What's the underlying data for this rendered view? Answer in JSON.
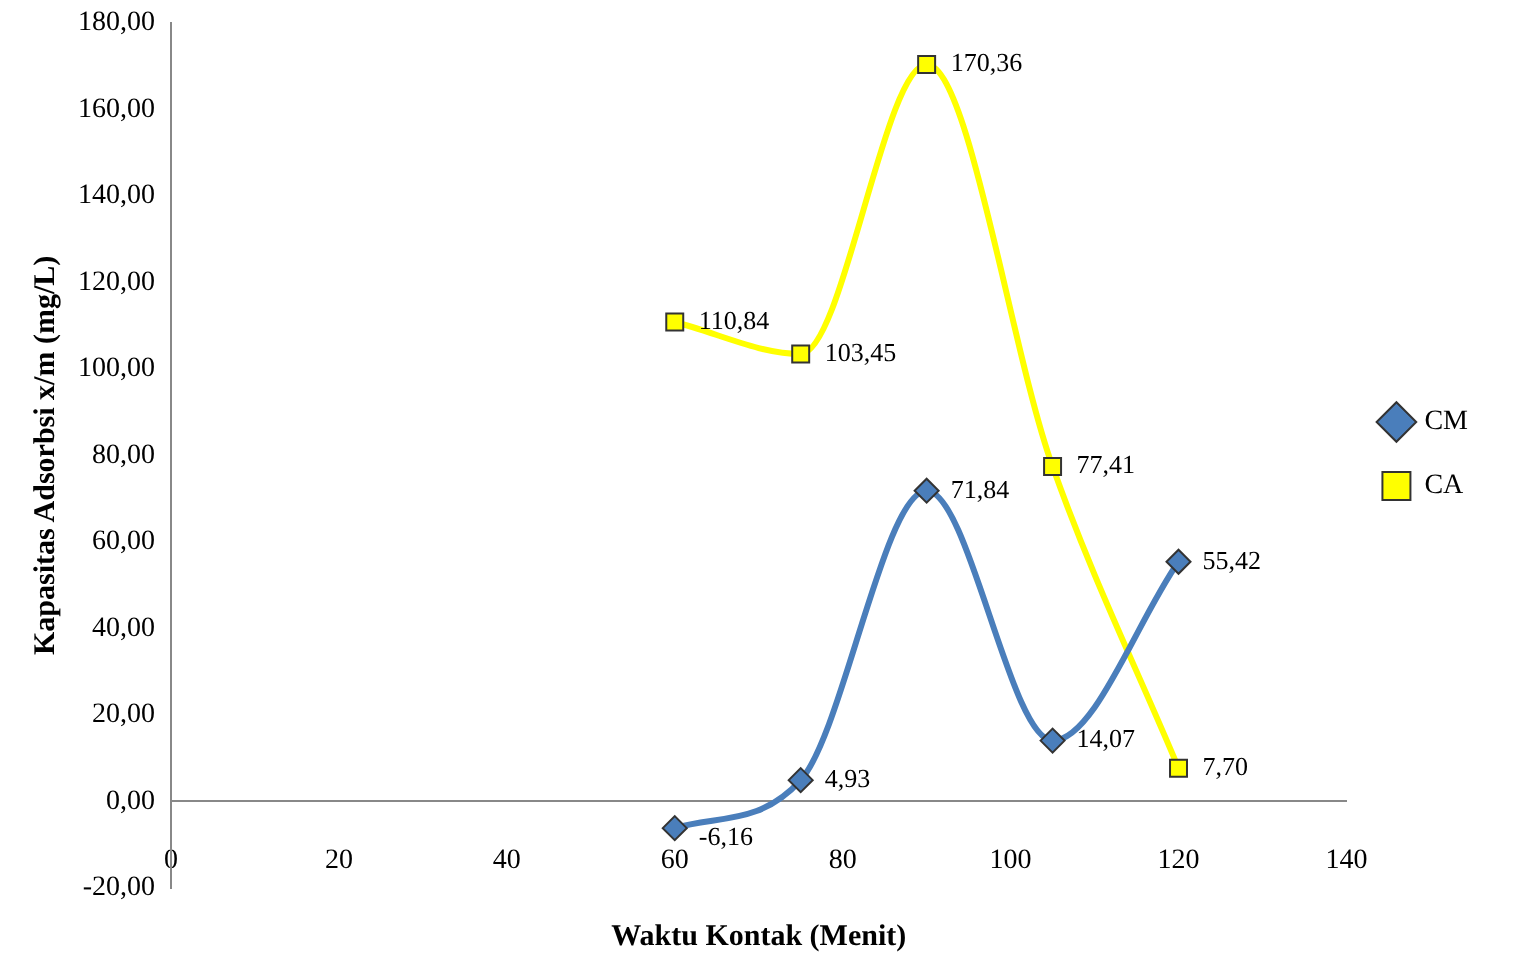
{
  "chart_data": {
    "type": "line",
    "xlabel": "Waktu Kontak (Menit)",
    "ylabel": "Kapasitas Adsorbsi x/m (mg/L)",
    "x": [
      60,
      75,
      90,
      105,
      120
    ],
    "series": [
      {
        "name": "CM",
        "color": "#4a7ebb",
        "marker": "diamond",
        "values": [
          -6.16,
          4.93,
          71.84,
          14.07,
          55.42
        ],
        "value_labels": [
          "-6,16",
          "4,93",
          "71,84",
          "14,07",
          "55,42"
        ]
      },
      {
        "name": "CA",
        "color": "#ffff00",
        "marker": "square",
        "values": [
          110.84,
          103.45,
          170.36,
          77.41,
          7.7
        ],
        "value_labels": [
          "110,84",
          "103,45",
          "170,36",
          "77,41",
          "7,70"
        ]
      }
    ],
    "xlim": [
      0,
      140
    ],
    "xticks": [
      0,
      20,
      40,
      60,
      80,
      100,
      120,
      140
    ],
    "ylim": [
      -20,
      180
    ],
    "yticks": [
      {
        "value": -20,
        "label": "-20,00"
      },
      {
        "value": 0,
        "label": "0,00"
      },
      {
        "value": 20,
        "label": "20,00"
      },
      {
        "value": 40,
        "label": "40,00"
      },
      {
        "value": 60,
        "label": "60,00"
      },
      {
        "value": 80,
        "label": "80,00"
      },
      {
        "value": 100,
        "label": "100,00"
      },
      {
        "value": 120,
        "label": "120,00"
      },
      {
        "value": 140,
        "label": "140,00"
      },
      {
        "value": 160,
        "label": "160,00"
      },
      {
        "value": 180,
        "label": "180,00"
      }
    ],
    "grid": false,
    "legend": "right",
    "line_style": "solid"
  }
}
